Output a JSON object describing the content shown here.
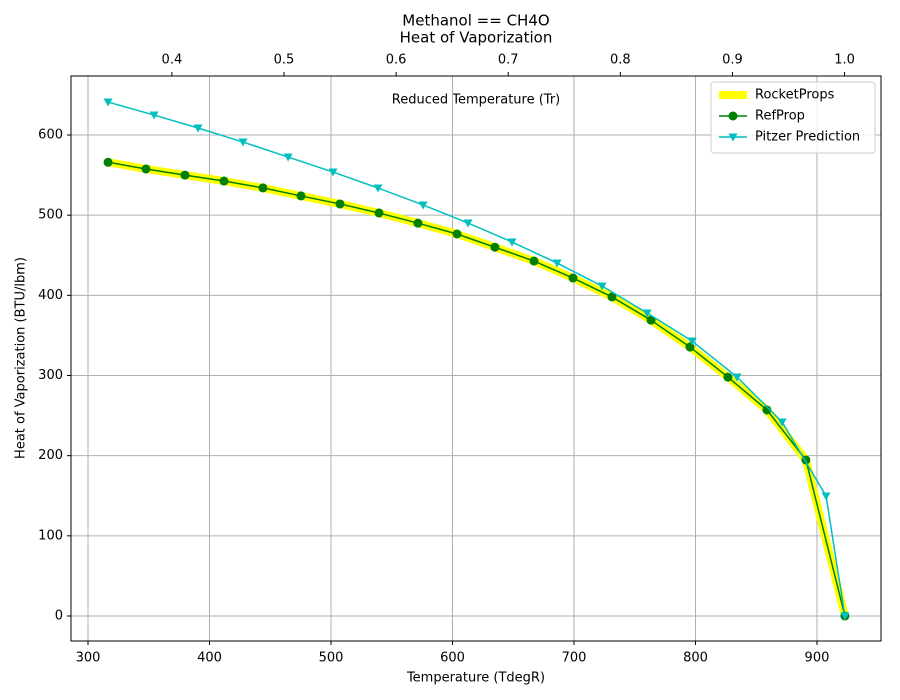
{
  "chart_data": {
    "type": "line",
    "title": "Methanol == CH4O",
    "subtitle": "Heat of Vaporization",
    "xlabel": "Temperature (TdegR)",
    "ylabel": "Heat of Vaporization (BTU/lbm)",
    "x2label": "Reduced Temperature (Tr)",
    "xlim": [
      286,
      952.7
    ],
    "ylim": [
      -31.2,
      673.6
    ],
    "x2lim": [
      0.31,
      1.0325
    ],
    "xticks": [
      300,
      400,
      500,
      600,
      700,
      800,
      900
    ],
    "yticks": [
      0,
      100,
      200,
      300,
      400,
      500,
      600
    ],
    "x2ticks": [
      0.4,
      0.5,
      0.6,
      0.7,
      0.8,
      0.9,
      {
        "value": 1.0,
        "label": "1.0"
      }
    ],
    "grid": true,
    "legend": "upper right",
    "series": [
      {
        "name": "RocketProps",
        "color": "#ffff00",
        "width": 8,
        "marker": "none",
        "x": [
          316.5,
          347.7,
          379.8,
          411.9,
          444.0,
          475.3,
          507.4,
          539.5,
          571.6,
          603.7,
          634.9,
          667.1,
          699.2,
          731.3,
          763.4,
          795.5,
          826.7,
          858.8,
          890.9,
          923.0
        ],
        "values": [
          566,
          557.6,
          550,
          542.6,
          534,
          524,
          514,
          502.7,
          490,
          476.5,
          460,
          442.8,
          421.6,
          398,
          369,
          335.5,
          298,
          257,
          194.6,
          0
        ]
      },
      {
        "name": "RefProp",
        "color": "#008000",
        "width": 1.5,
        "marker": "circle",
        "x": [
          316.5,
          347.7,
          379.8,
          411.9,
          444.0,
          475.3,
          507.4,
          539.5,
          571.6,
          603.7,
          634.9,
          667.1,
          699.2,
          731.3,
          763.4,
          795.5,
          826.7,
          858.8,
          890.9,
          923.0
        ],
        "values": [
          566,
          557.6,
          550,
          542.6,
          534,
          524,
          514,
          502.7,
          490,
          476.5,
          460,
          442.8,
          421.6,
          398,
          369,
          335.5,
          298,
          257,
          194.6,
          0
        ]
      },
      {
        "name": "Pitzer Prediction",
        "color": "#00bfbf",
        "width": 1.5,
        "marker": "triangle-down",
        "x": [
          316.5,
          354.4,
          390.6,
          427.6,
          464.7,
          501.7,
          538.7,
          575.8,
          612.8,
          649.0,
          686.1,
          723.1,
          760.2,
          797.2,
          834.2,
          871.3,
          907.5,
          923.0
        ],
        "values": [
          641.1,
          624.9,
          608.7,
          591.2,
          572.5,
          553.8,
          533.9,
          512.7,
          490.2,
          466.5,
          440.3,
          411.6,
          378,
          343,
          298.1,
          242,
          149.7,
          0
        ]
      }
    ]
  }
}
